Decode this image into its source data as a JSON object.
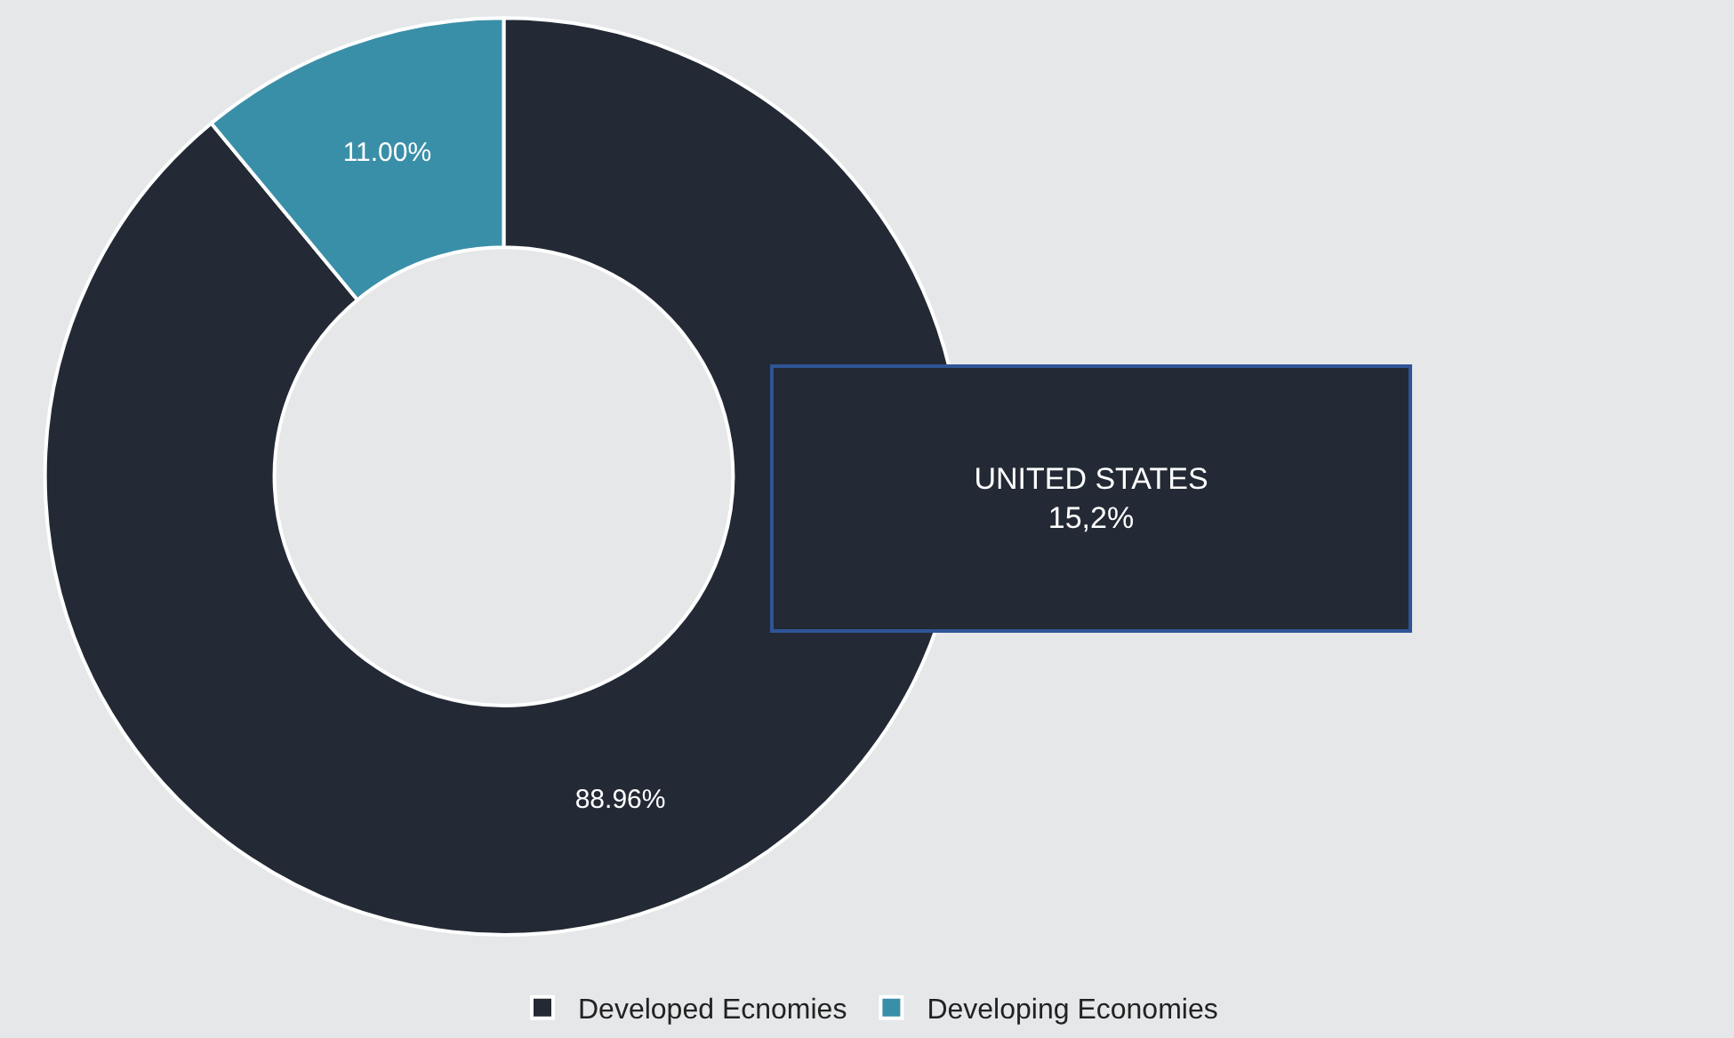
{
  "chart_data": {
    "type": "donut",
    "categories": [
      "Developed Ecnomies",
      "Developing Economies"
    ],
    "values": [
      88.96,
      11.0
    ],
    "colors": [
      "#232a35",
      "#3a8fa8"
    ],
    "value_labels": [
      "88.96%",
      "11.00%"
    ],
    "annotations": [
      "UNITED STATES\n15,2%"
    ],
    "legend": "bottom"
  }
}
